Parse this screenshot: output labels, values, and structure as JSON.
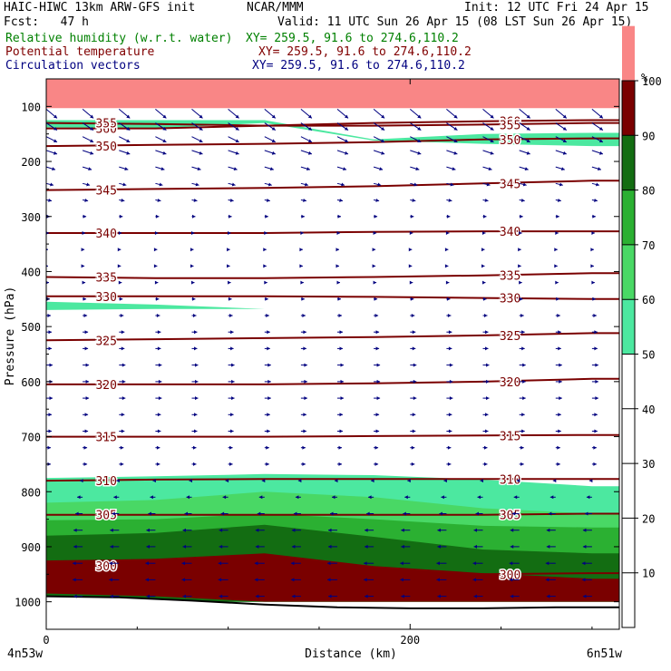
{
  "header": {
    "model": "HAIC-HIWC 13km ARW-GFS init",
    "center": "NCAR/MMM",
    "init": "Init: 12 UTC Fri 24 Apr 15",
    "fcst": "Fcst:   47 h",
    "valid": "Valid: 11 UTC Sun 26 Apr 15 (08 LST Sun 26 Apr 15)",
    "field_rh": "Relative humidity (w.r.t. water)",
    "field_theta": "Potential temperature",
    "field_vec": "Circulation vectors",
    "xy_rh": "XY= 259.5, 91.6 to 274.6,110.2",
    "xy_theta": "XY= 259.5, 91.6 to 274.6,110.2",
    "xy_vec": "XY= 259.5, 91.6 to 274.6,110.2"
  },
  "colors": {
    "rh_text": "#008000",
    "theta_text": "#800000",
    "vec_text": "#000080",
    "theta_line": "#7a0000",
    "vector": "#00007f",
    "rh_levels": [
      "#ffffff",
      "#ffffff",
      "#ffffff",
      "#ffffff",
      "#ffffff",
      "#4ce8a0",
      "#49d865",
      "#2bb032",
      "#136d12",
      "#7a0000",
      "#f98686"
    ]
  },
  "chart_data": {
    "type": "cross-section",
    "xlabel": "Distance (km)",
    "ylabel": "Pressure (hPa)",
    "xlim": [
      0,
      315
    ],
    "ylim": [
      1050,
      50
    ],
    "x_ticks": [
      0,
      200
    ],
    "x_tick_labels": [
      "0",
      "200"
    ],
    "x_end_labels": [
      "4n53w",
      "6n51w"
    ],
    "y_ticks": [
      100,
      200,
      300,
      400,
      500,
      600,
      700,
      800,
      900,
      1000
    ],
    "y_tick_labels": [
      "100",
      "200",
      "300",
      "400",
      "500",
      "600",
      "700",
      "800",
      "900",
      "1000"
    ],
    "colorbar": {
      "unit": "%",
      "levels": [
        0,
        10,
        20,
        30,
        40,
        50,
        60,
        70,
        80,
        90,
        100
      ],
      "tick_labels": [
        "10",
        "20",
        "30",
        "40",
        "50",
        "60",
        "70",
        "80",
        "90",
        "100"
      ]
    },
    "theta_contours": [
      {
        "value": 360,
        "label": "360",
        "p": [
          140,
          140,
          135,
          130,
          127,
          125
        ]
      },
      {
        "value": 355,
        "label": "355",
        "p": [
          130,
          132,
          135,
          135,
          133,
          130
        ]
      },
      {
        "value": 350,
        "label": "350",
        "p": [
          172,
          170,
          168,
          165,
          160,
          158
        ]
      },
      {
        "value": 345,
        "label": "345",
        "p": [
          252,
          250,
          248,
          245,
          240,
          235
        ]
      },
      {
        "value": 340,
        "label": "340",
        "p": [
          330,
          330,
          330,
          328,
          327,
          327
        ]
      },
      {
        "value": 335,
        "label": "335",
        "p": [
          410,
          412,
          412,
          410,
          407,
          403
        ]
      },
      {
        "value": 330,
        "label": "330",
        "p": [
          445,
          445,
          445,
          446,
          448,
          450
        ]
      },
      {
        "value": 325,
        "label": "325",
        "p": [
          525,
          523,
          521,
          519,
          516,
          512
        ]
      },
      {
        "value": 320,
        "label": "320",
        "p": [
          605,
          605,
          605,
          603,
          600,
          595
        ]
      },
      {
        "value": 315,
        "label": "315",
        "p": [
          700,
          700,
          700,
          699,
          698,
          697
        ]
      },
      {
        "value": 310,
        "label": "310",
        "p": [
          780,
          778,
          777,
          777,
          777,
          777
        ]
      },
      {
        "value": 305,
        "label": "305",
        "p": [
          842,
          842,
          842,
          842,
          842,
          840
        ]
      },
      {
        "value": 300,
        "label": "300",
        "p": [
          935,
          937,
          945,
          955,
          950,
          948
        ]
      }
    ],
    "theta_x": [
      0,
      60,
      120,
      180,
      240,
      300
    ],
    "rh_regions": [
      {
        "level": 50,
        "top": [
          775,
          772,
          768,
          770,
          778,
          790
        ],
        "bottom": [
          1000,
          1000,
          1000,
          1000,
          1000,
          1000
        ]
      },
      {
        "level": 60,
        "top": [
          820,
          815,
          800,
          810,
          830,
          840
        ],
        "bottom": [
          1000,
          1000,
          1000,
          1000,
          1000,
          1000
        ]
      },
      {
        "level": 70,
        "top": [
          852,
          850,
          840,
          850,
          862,
          865
        ],
        "bottom": [
          1000,
          1000,
          1000,
          1000,
          1000,
          1000
        ]
      },
      {
        "level": 80,
        "top": [
          880,
          875,
          860,
          882,
          905,
          912
        ],
        "bottom": [
          1000,
          1000,
          1000,
          1000,
          1000,
          1000
        ]
      },
      {
        "level": 90,
        "top": [
          925,
          922,
          912,
          935,
          948,
          958
        ],
        "bottom": [
          985,
          990,
          1000,
          1000,
          1000,
          1000
        ]
      },
      {
        "level": 100,
        "top": [
          50,
          50,
          50,
          50,
          50,
          50
        ],
        "bottom": [
          103,
          103,
          103,
          103,
          103,
          103
        ]
      },
      {
        "level": 50,
        "top": [
          125,
          125,
          125,
          160,
          150,
          148
        ],
        "bottom": [
          138,
          140,
          130,
          162,
          168,
          172
        ]
      },
      {
        "level": 50,
        "top": [
          455,
          460,
          468,
          470,
          470,
          470
        ],
        "bottom": [
          470,
          468,
          468,
          470,
          470,
          470
        ]
      }
    ],
    "rh_x": [
      0,
      60,
      120,
      180,
      240,
      300
    ],
    "terrain": {
      "x": [
        0,
        40,
        80,
        120,
        160,
        200,
        240,
        280,
        315
      ],
      "p": [
        990,
        992,
        998,
        1005,
        1010,
        1012,
        1012,
        1010,
        1010
      ]
    },
    "vectors": {
      "x": [
        0,
        20,
        40,
        60,
        80,
        100,
        120,
        140,
        160,
        180,
        200,
        220,
        240,
        260,
        280,
        300
      ],
      "p": [
        105,
        130,
        155,
        180,
        210,
        240,
        270,
        300,
        330,
        360,
        390,
        420,
        450,
        480,
        510,
        540,
        570,
        600,
        630,
        660,
        690,
        720,
        750,
        780,
        810,
        840,
        870,
        900,
        930,
        960,
        990
      ],
      "u": [
        12,
        12,
        12,
        12,
        10,
        8,
        6,
        4,
        3,
        2,
        2,
        3,
        4,
        5,
        6,
        6,
        7,
        7,
        7,
        6,
        6,
        5,
        5,
        -3,
        -6,
        -8,
        -10,
        -10,
        -11,
        -11,
        -10
      ],
      "w": [
        -10,
        -8,
        -6,
        -4,
        -3,
        -2,
        -1,
        0,
        0,
        0,
        0,
        0,
        0,
        0,
        0,
        0,
        0,
        0,
        0,
        0,
        0,
        0,
        0,
        0,
        0,
        0,
        0,
        0,
        0,
        0,
        0
      ]
    }
  }
}
